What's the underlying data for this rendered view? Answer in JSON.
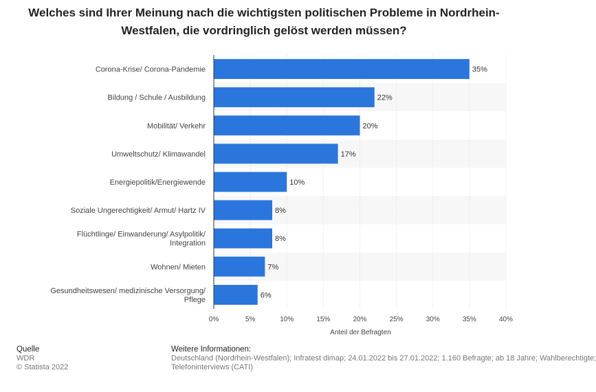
{
  "title": "Welches sind Ihrer Meinung nach die wichtigsten politischen Probleme in Nordrhein-Westfalen, die vordringlich gelöst werden müssen?",
  "chart_data": {
    "type": "bar",
    "orientation": "horizontal",
    "title": "Welches sind Ihrer Meinung nach die wichtigsten politischen Probleme in Nordrhein-Westfalen, die vordringlich gelöst werden müssen?",
    "categories": [
      "Corona-Krise/ Corona-Pandemie",
      "Bildung / Schule / Ausbildung",
      "Mobilität/ Verkehr",
      "Umweltschutz/ Klimawandel",
      "Energiepolitik/Energiewende",
      "Soziale Ungerechtigkeit/ Armut/ Hartz IV",
      "Flüchtlinge/ Einwanderung/ Asylpolitik/ Integration",
      "Wohnen/ Mieten",
      "Gesundheitswesen/ medizinische Versorgung/ Pflege"
    ],
    "category_lines": [
      [
        "Corona-Krise/ Corona-Pandemie"
      ],
      [
        "Bildung / Schule / Ausbildung"
      ],
      [
        "Mobilität/ Verkehr"
      ],
      [
        "Umweltschutz/ Klimawandel"
      ],
      [
        "Energiepolitik/Energiewende"
      ],
      [
        "Soziale Ungerechtigkeit/ Armut/ Hartz IV"
      ],
      [
        "Flüchtlinge/ Einwanderung/ Asylpolitik/",
        "Integration"
      ],
      [
        "Wohnen/ Mieten"
      ],
      [
        "Gesundheitswesen/ medizinische Versorgung/",
        "Pflege"
      ]
    ],
    "values": [
      35,
      22,
      20,
      17,
      10,
      8,
      8,
      7,
      6
    ],
    "value_labels": [
      "35%",
      "22%",
      "20%",
      "17%",
      "10%",
      "8%",
      "8%",
      "7%",
      "6%"
    ],
    "xlabel": "Anteil der Befragten",
    "ylabel": "",
    "xlim": [
      0,
      40
    ],
    "ticks": [
      0,
      5,
      10,
      15,
      20,
      25,
      30,
      35,
      40
    ],
    "tick_labels": [
      "0%",
      "5%",
      "10%",
      "15%",
      "20%",
      "25%",
      "30%",
      "35%",
      "40%"
    ],
    "bar_color": "#2a76dd"
  },
  "footer": {
    "source_heading": "Quelle",
    "source": "WDR",
    "copyright": "© Statista 2022",
    "info_heading": "Weitere Informationen:",
    "info_line1": "Deutschland (Nordrhein-Westfalen); Infratest dimap; 24.01.2022 bis 27.01.2022; 1.160 Befragte; ab 18 Jahre; Wahlberechtigte;",
    "info_line2": "Telefoninterviews (CATI)"
  }
}
